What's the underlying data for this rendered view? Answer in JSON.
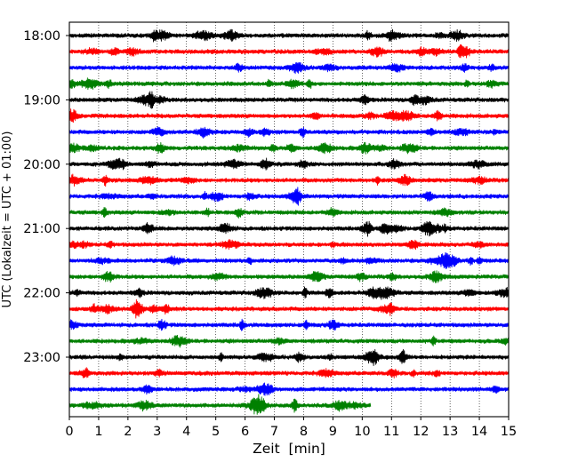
{
  "chart_data": {
    "type": "line",
    "subtype": "helicorder-seismogram",
    "xlabel": "Zeit  [min]",
    "ylabel": "UTC (Lokalzeit = UTC + 01:00)",
    "xlim": [
      0,
      15
    ],
    "x_ticks": [
      "0",
      "1",
      "2",
      "3",
      "4",
      "5",
      "6",
      "7",
      "8",
      "9",
      "10",
      "11",
      "12",
      "13",
      "14",
      "15"
    ],
    "y_ticks": [
      "18:00",
      "19:00",
      "20:00",
      "21:00",
      "22:00",
      "23:00"
    ],
    "grid": "vertical-dotted",
    "trace_colors": [
      "#000000",
      "#ff0000",
      "#0000ff",
      "#008000"
    ],
    "traces": [
      {
        "start": "18:00",
        "end_minute": 15
      },
      {
        "start": "18:15",
        "end_minute": 15
      },
      {
        "start": "18:30",
        "end_minute": 15
      },
      {
        "start": "18:45",
        "end_minute": 15
      },
      {
        "start": "19:00",
        "end_minute": 15
      },
      {
        "start": "19:15",
        "end_minute": 15
      },
      {
        "start": "19:30",
        "end_minute": 15
      },
      {
        "start": "19:45",
        "end_minute": 15
      },
      {
        "start": "20:00",
        "end_minute": 15
      },
      {
        "start": "20:15",
        "end_minute": 15
      },
      {
        "start": "20:30",
        "end_minute": 15
      },
      {
        "start": "20:45",
        "end_minute": 15
      },
      {
        "start": "21:00",
        "end_minute": 15
      },
      {
        "start": "21:15",
        "end_minute": 15
      },
      {
        "start": "21:30",
        "end_minute": 15
      },
      {
        "start": "21:45",
        "end_minute": 15
      },
      {
        "start": "22:00",
        "end_minute": 15
      },
      {
        "start": "22:15",
        "end_minute": 15
      },
      {
        "start": "22:30",
        "end_minute": 15
      },
      {
        "start": "22:45",
        "end_minute": 15
      },
      {
        "start": "23:00",
        "end_minute": 15
      },
      {
        "start": "23:15",
        "end_minute": 15
      },
      {
        "start": "23:30",
        "end_minute": 15
      },
      {
        "start": "23:45",
        "end_minute": 10.3
      }
    ]
  }
}
